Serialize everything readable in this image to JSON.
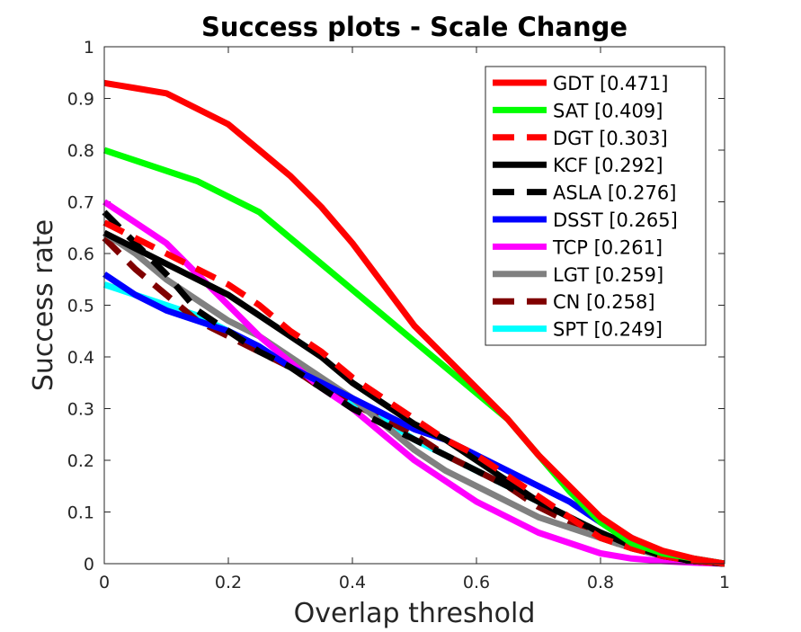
{
  "chart_data": {
    "type": "line",
    "title": "Success plots - Scale Change",
    "xlabel": "Overlap threshold",
    "ylabel": "Success rate",
    "xlim": [
      0,
      1
    ],
    "ylim": [
      0,
      1
    ],
    "x_ticks": [
      "0",
      "0.2",
      "0.4",
      "0.6",
      "0.8",
      "1"
    ],
    "y_ticks": [
      "0",
      "0.1",
      "0.2",
      "0.3",
      "0.4",
      "0.5",
      "0.6",
      "0.7",
      "0.8",
      "0.9",
      "1"
    ],
    "legend_position": "top-right",
    "x": [
      0,
      0.05,
      0.1,
      0.15,
      0.2,
      0.25,
      0.3,
      0.35,
      0.4,
      0.45,
      0.5,
      0.55,
      0.6,
      0.65,
      0.7,
      0.75,
      0.8,
      0.85,
      0.9,
      0.95,
      1
    ],
    "series": [
      {
        "name": "GDT [0.471]",
        "color": "#ff0000",
        "dash": "solid",
        "values": [
          0.93,
          0.92,
          0.91,
          0.88,
          0.85,
          0.8,
          0.75,
          0.69,
          0.62,
          0.54,
          0.46,
          0.4,
          0.34,
          0.28,
          0.21,
          0.15,
          0.09,
          0.05,
          0.025,
          0.01,
          0
        ]
      },
      {
        "name": "SAT [0.409]",
        "color": "#00ff00",
        "dash": "solid",
        "values": [
          0.8,
          0.78,
          0.76,
          0.74,
          0.71,
          0.68,
          0.63,
          0.58,
          0.53,
          0.48,
          0.43,
          0.38,
          0.33,
          0.28,
          0.21,
          0.14,
          0.08,
          0.04,
          0.02,
          0.01,
          0
        ]
      },
      {
        "name": "DGT [0.303]",
        "color": "#ff0000",
        "dash": "dashed",
        "values": [
          0.66,
          0.63,
          0.6,
          0.57,
          0.54,
          0.5,
          0.45,
          0.41,
          0.36,
          0.32,
          0.28,
          0.24,
          0.21,
          0.17,
          0.13,
          0.09,
          0.05,
          0.03,
          0.015,
          0.005,
          0
        ]
      },
      {
        "name": "KCF [0.292]",
        "color": "#000000",
        "dash": "solid",
        "values": [
          0.64,
          0.61,
          0.58,
          0.55,
          0.52,
          0.48,
          0.44,
          0.4,
          0.35,
          0.31,
          0.27,
          0.24,
          0.2,
          0.16,
          0.12,
          0.09,
          0.06,
          0.035,
          0.015,
          0.005,
          0
        ]
      },
      {
        "name": "ASLA [0.276]",
        "color": "#000000",
        "dash": "dashed",
        "values": [
          0.68,
          0.62,
          0.56,
          0.49,
          0.45,
          0.41,
          0.38,
          0.34,
          0.3,
          0.27,
          0.24,
          0.21,
          0.18,
          0.15,
          0.12,
          0.09,
          0.06,
          0.035,
          0.015,
          0.005,
          0
        ]
      },
      {
        "name": "DSST [0.265]",
        "color": "#0000ff",
        "dash": "solid",
        "values": [
          0.56,
          0.52,
          0.49,
          0.47,
          0.45,
          0.42,
          0.38,
          0.35,
          0.32,
          0.29,
          0.26,
          0.24,
          0.21,
          0.18,
          0.15,
          0.12,
          0.08,
          0.05,
          0.02,
          0.01,
          0
        ]
      },
      {
        "name": "TCP [0.261]",
        "color": "#ff00ff",
        "dash": "solid",
        "values": [
          0.7,
          0.66,
          0.62,
          0.56,
          0.5,
          0.44,
          0.39,
          0.34,
          0.3,
          0.25,
          0.2,
          0.16,
          0.12,
          0.09,
          0.06,
          0.04,
          0.02,
          0.01,
          0.005,
          0.002,
          0
        ]
      },
      {
        "name": "LGT [0.259]",
        "color": "#808080",
        "dash": "solid",
        "values": [
          0.64,
          0.6,
          0.55,
          0.51,
          0.47,
          0.44,
          0.4,
          0.36,
          0.32,
          0.27,
          0.22,
          0.18,
          0.15,
          0.12,
          0.09,
          0.07,
          0.05,
          0.03,
          0.015,
          0.005,
          0
        ]
      },
      {
        "name": "CN [0.258]",
        "color": "#800000",
        "dash": "dashed",
        "values": [
          0.63,
          0.57,
          0.52,
          0.47,
          0.44,
          0.41,
          0.38,
          0.34,
          0.31,
          0.28,
          0.25,
          0.21,
          0.18,
          0.15,
          0.11,
          0.08,
          0.05,
          0.03,
          0.015,
          0.005,
          0
        ]
      },
      {
        "name": "SPT [0.249]",
        "color": "#00ffff",
        "dash": "solid",
        "values": [
          0.54,
          0.52,
          0.5,
          0.48,
          0.45,
          0.42,
          0.38,
          0.35,
          0.31,
          0.28,
          0.24,
          0.21,
          0.18,
          0.15,
          0.12,
          0.09,
          0.06,
          0.035,
          0.015,
          0.005,
          0
        ]
      }
    ]
  }
}
